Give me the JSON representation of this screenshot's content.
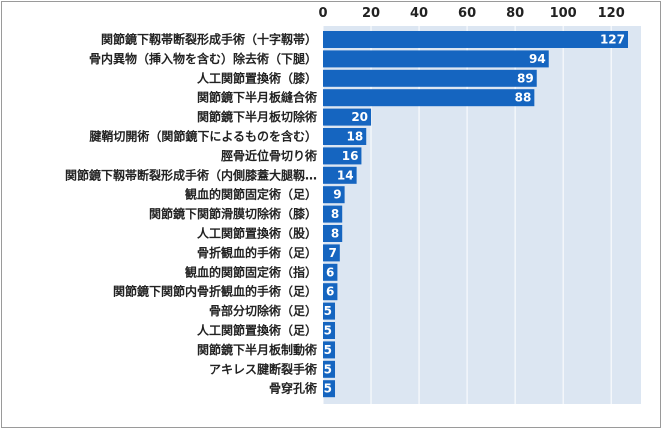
{
  "chart_data": {
    "type": "bar",
    "orientation": "horizontal",
    "categories": [
      "関節鏡下靱帯断裂形成手術（十字靱帯）",
      "骨内異物（挿入物を含む）除去術（下腿）",
      "人工関節置換術（膝）",
      "関節鏡下半月板縫合術",
      "関節鏡下半月板切除術",
      "腱鞘切開術（関節鏡下によるものを含む）",
      "脛骨近位骨切り術",
      "関節鏡下靱帯断裂形成手術（内側膝蓋大腿靱…",
      "観血的関節固定術（足）",
      "関節鏡下関節滑膜切除術（膝）",
      "人工関節置換術（股）",
      "骨折観血的手術（足）",
      "観血的関節固定術（指）",
      "関節鏡下関節内骨折観血的手術（足）",
      "骨部分切除術（足）",
      "人工関節置換術（足）",
      "関節鏡下半月板制動術",
      "アキレス腱断裂手術",
      "骨穿孔術"
    ],
    "values": [
      127,
      94,
      89,
      88,
      20,
      18,
      16,
      14,
      9,
      8,
      8,
      7,
      6,
      6,
      5,
      5,
      5,
      5,
      5
    ],
    "value_labels": [
      "127",
      "94",
      "89",
      "88",
      "20",
      "18",
      "16",
      "14",
      "9",
      "8",
      "8",
      "7",
      "6",
      "6",
      "5",
      "5",
      "5",
      "5",
      "5"
    ],
    "xlim": [
      0,
      127
    ],
    "xticks": [
      0,
      20,
      40,
      60,
      80,
      100,
      120
    ],
    "xtick_labels": [
      "0",
      "20",
      "40",
      "60",
      "80",
      "100",
      "120"
    ],
    "grid": true,
    "legend": "none",
    "colors": {
      "bar": "#1565c0",
      "plot_background": "#dce6f2",
      "gridline": "#ffffff",
      "value_text": "#ffffff",
      "label_text": "#222222"
    }
  }
}
